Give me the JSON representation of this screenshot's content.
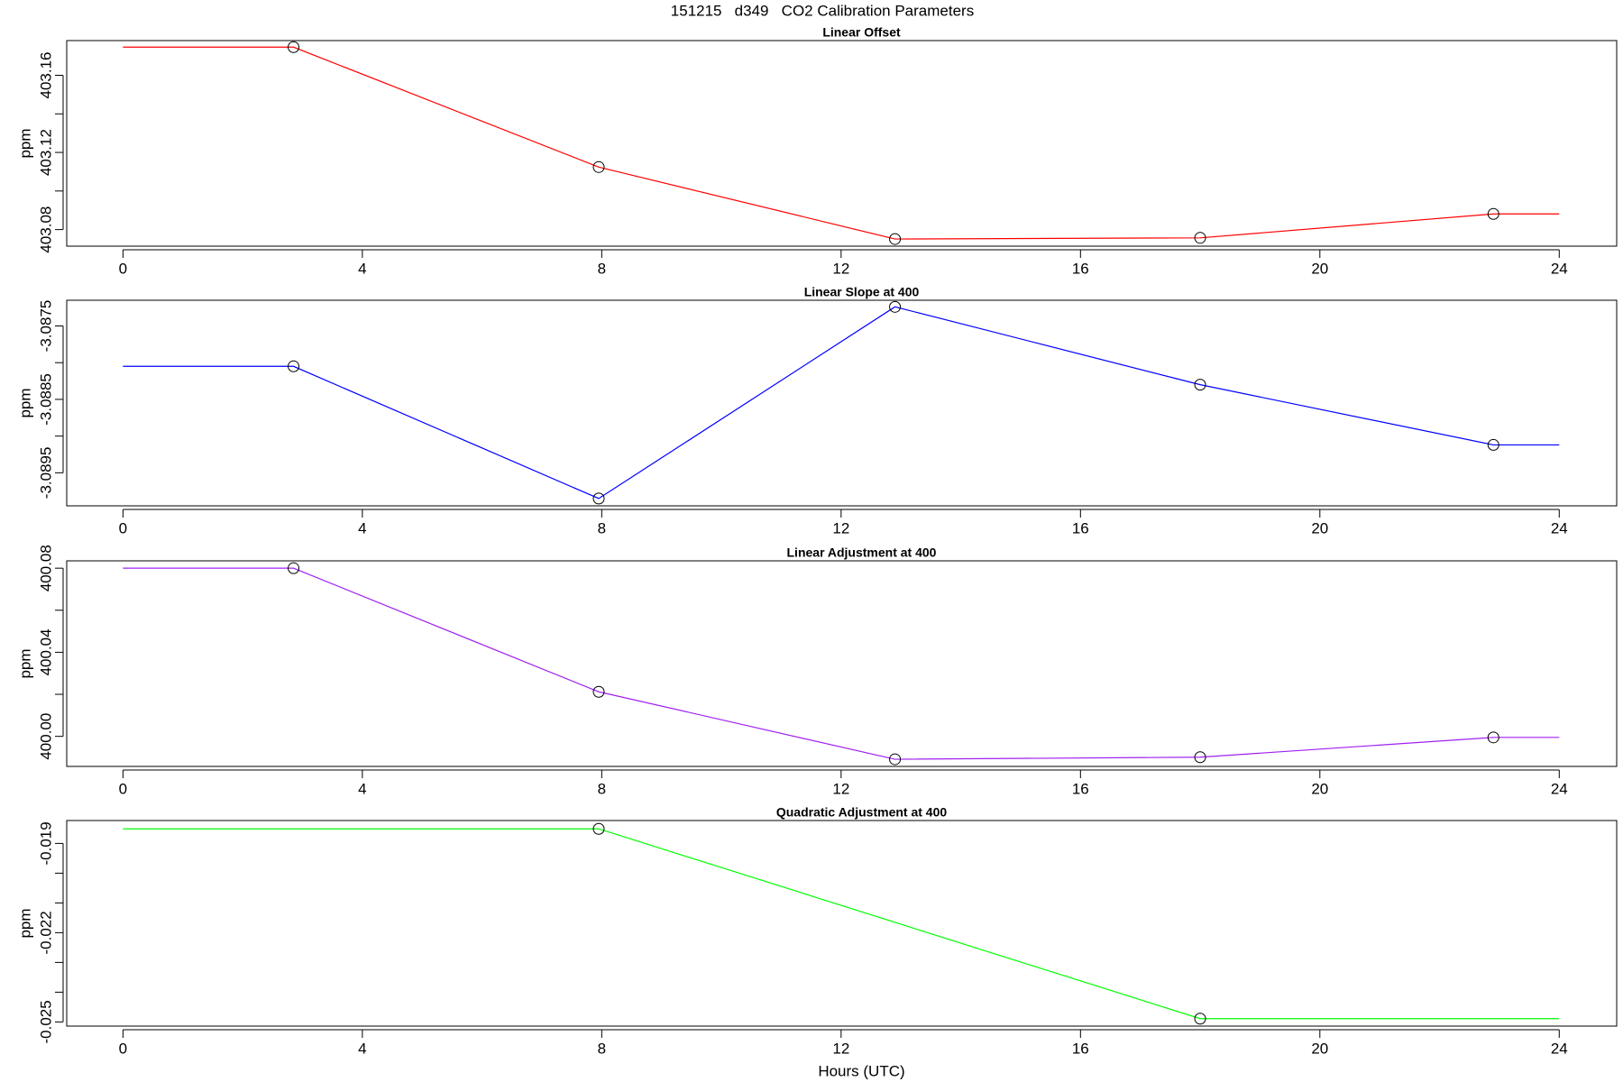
{
  "title": "151215   d349   CO2 Calibration Parameters",
  "chart_data": [
    {
      "type": "line",
      "title": "Linear Offset",
      "ylabel": "ppm",
      "color": "#ff0000",
      "x": [
        0,
        2.85,
        7.95,
        12.9,
        18,
        22.9,
        24
      ],
      "values": [
        403.1746,
        403.1746,
        403.1124,
        403.0751,
        403.0757,
        403.0881,
        403.0881
      ],
      "markers": [
        false,
        true,
        true,
        true,
        true,
        true,
        false
      ],
      "xlim": [
        -0.94,
        24.96
      ],
      "xticks": [
        0,
        4,
        8,
        12,
        16,
        20,
        24
      ],
      "ylim": [
        403.0714,
        403.178
      ],
      "yticks": [
        403.08,
        403.12,
        403.16
      ],
      "yminor_ticks": [
        403.1,
        403.14
      ]
    },
    {
      "type": "line",
      "title": "Linear Slope at 400",
      "ylabel": "ppm",
      "color": "#0000ff",
      "x": [
        0,
        2.85,
        7.95,
        12.9,
        18,
        22.9,
        24
      ],
      "values": [
        -3.08805,
        -3.08805,
        -3.08985,
        -3.08724,
        -3.0883,
        -3.08912,
        -3.08912
      ],
      "markers": [
        false,
        true,
        true,
        true,
        true,
        true,
        false
      ],
      "xlim": [
        -0.94,
        24.96
      ],
      "xticks": [
        0,
        4,
        8,
        12,
        16,
        20,
        24
      ],
      "ylim": [
        -3.08995,
        -3.08715
      ],
      "yticks": [
        -3.0895,
        -3.0885,
        -3.0875
      ],
      "yminor_ticks": [
        -3.089,
        -3.088
      ]
    },
    {
      "type": "line",
      "title": "Linear Adjustment at 400",
      "ylabel": "ppm",
      "color": "#a020f0",
      "x": [
        0,
        2.85,
        7.95,
        12.9,
        18,
        22.9,
        24
      ],
      "values": [
        400.08,
        400.08,
        400.0212,
        399.9891,
        399.9901,
        399.9995,
        399.9995
      ],
      "markers": [
        false,
        true,
        true,
        true,
        true,
        true,
        false
      ],
      "xlim": [
        -0.94,
        24.96
      ],
      "xticks": [
        0,
        4,
        8,
        12,
        16,
        20,
        24
      ],
      "ylim": [
        399.9857,
        400.0835
      ],
      "yticks": [
        {
          "value": 400,
          "label": "400.00"
        },
        400.04,
        400.08
      ],
      "yminor_ticks": [
        400.02,
        400.06
      ]
    },
    {
      "type": "line",
      "title": "Quadratic Adjustment at 400",
      "ylabel": "ppm",
      "xlabel": "Hours (UTC)",
      "color": "#00ff00",
      "x": [
        0,
        7.95,
        18,
        24
      ],
      "values": [
        -0.01851,
        -0.01851,
        -0.02489,
        -0.02489
      ],
      "markers": [
        false,
        true,
        true,
        false
      ],
      "xlim": [
        -0.94,
        24.96
      ],
      "xticks": [
        0,
        4,
        8,
        12,
        16,
        20,
        24
      ],
      "ylim": [
        -0.02514,
        -0.01823
      ],
      "yticks": [
        -0.025,
        -0.022,
        -0.019
      ],
      "yminor_ticks": [
        -0.024,
        -0.023,
        -0.021,
        -0.02
      ]
    }
  ]
}
